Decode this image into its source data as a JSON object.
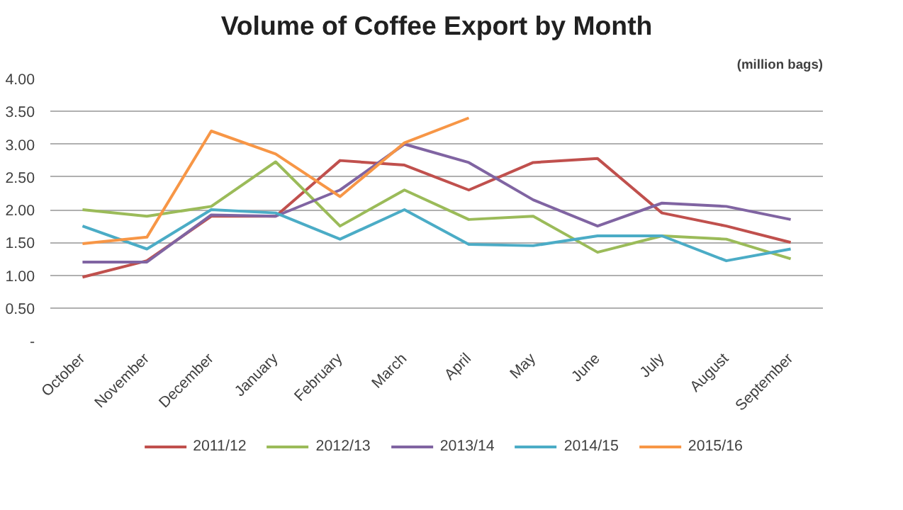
{
  "chart_data": {
    "type": "line",
    "title": "Volume of Coffee Export by Month",
    "subtitle": "(million bags)",
    "categories": [
      "October",
      "November",
      "December",
      "January",
      "February",
      "March",
      "April",
      "May",
      "June",
      "July",
      "August",
      "September"
    ],
    "series": [
      {
        "name": "2011/12",
        "color": "#c0504d",
        "values": [
          0.97,
          1.22,
          1.9,
          1.9,
          2.75,
          2.68,
          2.3,
          2.72,
          2.78,
          1.95,
          1.75,
          1.5
        ]
      },
      {
        "name": "2012/13",
        "color": "#9bbb59",
        "values": [
          2.0,
          1.9,
          2.05,
          2.73,
          1.75,
          2.3,
          1.85,
          1.9,
          1.35,
          1.6,
          1.55,
          1.25
        ]
      },
      {
        "name": "2013/14",
        "color": "#8064a2",
        "values": [
          1.2,
          1.2,
          1.92,
          1.9,
          2.3,
          3.0,
          2.72,
          2.15,
          1.75,
          2.1,
          2.05,
          1.85
        ]
      },
      {
        "name": "2014/15",
        "color": "#4bacc6",
        "values": [
          1.75,
          1.4,
          2.0,
          1.95,
          1.55,
          2.0,
          1.47,
          1.45,
          1.6,
          1.6,
          1.22,
          1.4
        ]
      },
      {
        "name": "2015/16",
        "color": "#f79646",
        "values": [
          1.48,
          1.58,
          3.2,
          2.85,
          2.2,
          3.02,
          3.4,
          null,
          null,
          null,
          null,
          null
        ]
      }
    ],
    "ylim": [
      0,
      4
    ],
    "yticks": [
      {
        "value": 0,
        "label": "-"
      },
      {
        "value": 0.5,
        "label": "0.50"
      },
      {
        "value": 1,
        "label": "1.00"
      },
      {
        "value": 1.5,
        "label": "1.50"
      },
      {
        "value": 2,
        "label": "2.00"
      },
      {
        "value": 2.5,
        "label": "2.50"
      },
      {
        "value": 3,
        "label": "3.00"
      },
      {
        "value": 3.5,
        "label": "3.50"
      },
      {
        "value": 4,
        "label": "4.00"
      }
    ],
    "grid": "y",
    "legend": "bottom",
    "marker": "none",
    "line_style": "solid"
  }
}
